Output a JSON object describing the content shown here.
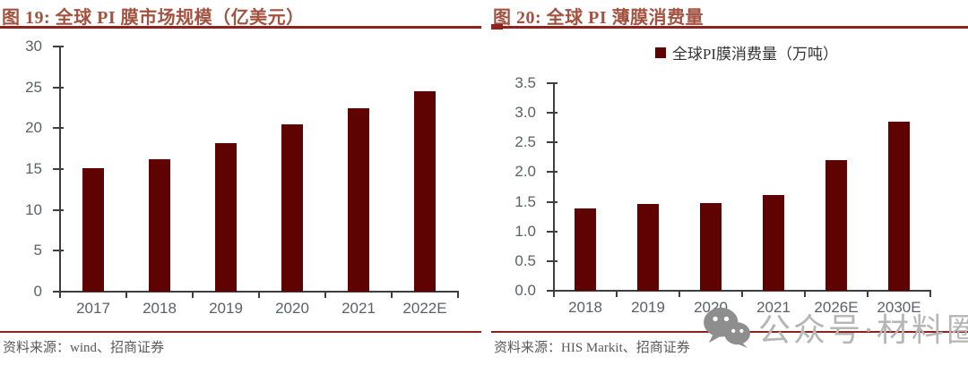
{
  "watermark": {
    "label": "公众号·材料圈",
    "icon": "wechat-icon",
    "color": "#B6B6B6"
  },
  "colors": {
    "bar": "#5E0202",
    "accent_rule": "#8C231E",
    "title_text": "#A35240",
    "axis": "#3F3F3F",
    "tick_label": "#5D6066",
    "source_text": "#595959"
  },
  "chart_data": [
    {
      "type": "bar",
      "title": "图 19: 全球 PI 膜市场规模（亿美元）",
      "categories": [
        "2017",
        "2018",
        "2019",
        "2020",
        "2021",
        "2022E"
      ],
      "values": [
        15.1,
        16.2,
        18.2,
        20.5,
        22.5,
        24.5
      ],
      "ylim": [
        0,
        30
      ],
      "yticks": [
        "0",
        "5",
        "10",
        "15",
        "20",
        "25",
        "30"
      ],
      "grid": false,
      "legend": [],
      "bar_color": "#5E0202",
      "source": "资料来源：wind、招商证券"
    },
    {
      "type": "bar",
      "title": "图 20: 全球 PI 薄膜消费量",
      "categories": [
        "2018",
        "2019",
        "2020",
        "2021",
        "2026E",
        "2030E"
      ],
      "values": [
        1.39,
        1.46,
        1.48,
        1.62,
        2.2,
        2.85
      ],
      "ylim": [
        0,
        3.5
      ],
      "yticks": [
        "0.0",
        "0.5",
        "1.0",
        "1.5",
        "2.0",
        "2.5",
        "3.0",
        "3.5"
      ],
      "grid": false,
      "legend": [
        "全球PI膜消费量（万吨）"
      ],
      "legend_position": "top",
      "bar_color": "#5E0202",
      "source": "资料来源：HIS Markit、招商证券"
    }
  ]
}
